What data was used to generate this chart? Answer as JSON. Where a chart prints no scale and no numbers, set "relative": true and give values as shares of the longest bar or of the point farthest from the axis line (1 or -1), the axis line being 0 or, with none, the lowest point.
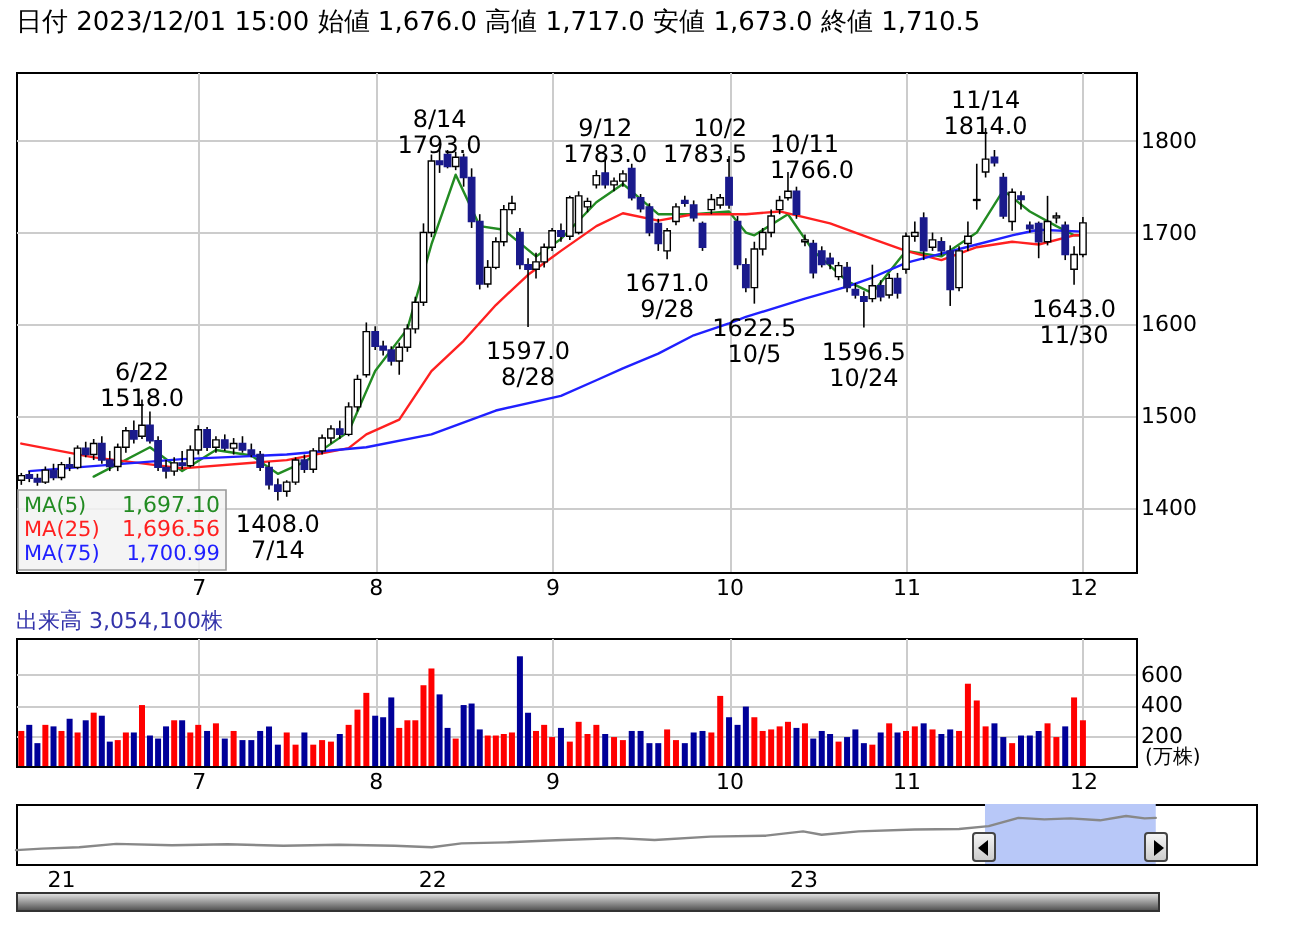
{
  "chart_data": [
    {
      "type": "candlestick",
      "title": "日付 2023/12/01 15:00 始値 1,676.0 高値 1,717.0 安値 1,673.0 終値 1,710.5",
      "x": [
        6,
        6.045,
        6.091,
        6.136,
        6.182,
        6.227,
        6.273,
        6.318,
        6.364,
        6.409,
        6.455,
        6.5,
        6.545,
        6.591,
        6.636,
        6.682,
        6.727,
        6.773,
        6.818,
        6.864,
        6.909,
        6.955,
        7,
        7.05,
        7.1,
        7.15,
        7.2,
        7.25,
        7.3,
        7.35,
        7.4,
        7.45,
        7.5,
        7.55,
        7.6,
        7.65,
        7.7,
        7.75,
        7.8,
        7.85,
        7.9,
        7.95,
        8,
        8.045,
        8.091,
        8.136,
        8.182,
        8.227,
        8.273,
        8.318,
        8.364,
        8.409,
        8.455,
        8.5,
        8.545,
        8.591,
        8.636,
        8.682,
        8.727,
        8.773,
        8.818,
        8.864,
        8.909,
        8.955,
        9,
        9.05,
        9.1,
        9.15,
        9.2,
        9.25,
        9.3,
        9.35,
        9.4,
        9.45,
        9.5,
        9.55,
        9.6,
        9.65,
        9.7,
        9.75,
        9.8,
        9.85,
        9.9,
        9.95,
        10,
        10.048,
        10.095,
        10.143,
        10.19,
        10.238,
        10.286,
        10.333,
        10.381,
        10.429,
        10.476,
        10.524,
        10.571,
        10.619,
        10.667,
        10.714,
        10.762,
        10.81,
        10.857,
        10.905,
        10.952,
        11,
        11.05,
        11.1,
        11.15,
        11.2,
        11.25,
        11.3,
        11.35,
        11.4,
        11.45,
        11.5,
        11.55,
        11.6,
        11.65,
        11.7,
        11.75,
        11.8,
        11.85,
        11.9,
        11.95,
        12
      ],
      "ohlc": [
        [
          1430,
          1438,
          1425,
          1435
        ],
        [
          1436,
          1440,
          1428,
          1432
        ],
        [
          1432,
          1437,
          1424,
          1428
        ],
        [
          1428,
          1445,
          1426,
          1441
        ],
        [
          1441,
          1448,
          1430,
          1433
        ],
        [
          1433,
          1450,
          1430,
          1447
        ],
        [
          1447,
          1455,
          1440,
          1444
        ],
        [
          1444,
          1468,
          1442,
          1465
        ],
        [
          1465,
          1472,
          1455,
          1458
        ],
        [
          1458,
          1475,
          1452,
          1470
        ],
        [
          1470,
          1478,
          1448,
          1452
        ],
        [
          1452,
          1462,
          1440,
          1445
        ],
        [
          1445,
          1470,
          1440,
          1466
        ],
        [
          1466,
          1488,
          1460,
          1484
        ],
        [
          1484,
          1495,
          1470,
          1475
        ],
        [
          1478,
          1518,
          1475,
          1490
        ],
        [
          1490,
          1505,
          1470,
          1473
        ],
        [
          1473,
          1478,
          1440,
          1444
        ],
        [
          1444,
          1452,
          1432,
          1440
        ],
        [
          1440,
          1455,
          1435,
          1449
        ],
        [
          1449,
          1462,
          1442,
          1446
        ],
        [
          1446,
          1468,
          1444,
          1463
        ],
        [
          1463,
          1490,
          1458,
          1485
        ],
        [
          1485,
          1488,
          1462,
          1466
        ],
        [
          1466,
          1478,
          1460,
          1474
        ],
        [
          1474,
          1480,
          1462,
          1465
        ],
        [
          1465,
          1476,
          1458,
          1470
        ],
        [
          1470,
          1478,
          1460,
          1463
        ],
        [
          1463,
          1470,
          1455,
          1458
        ],
        [
          1458,
          1462,
          1440,
          1444
        ],
        [
          1444,
          1450,
          1420,
          1425
        ],
        [
          1425,
          1432,
          1408,
          1418
        ],
        [
          1418,
          1430,
          1412,
          1428
        ],
        [
          1428,
          1455,
          1425,
          1452
        ],
        [
          1452,
          1458,
          1438,
          1442
        ],
        [
          1442,
          1465,
          1438,
          1462
        ],
        [
          1462,
          1480,
          1458,
          1476
        ],
        [
          1476,
          1490,
          1470,
          1486
        ],
        [
          1486,
          1495,
          1475,
          1480
        ],
        [
          1480,
          1515,
          1478,
          1510
        ],
        [
          1510,
          1545,
          1505,
          1540
        ],
        [
          1545,
          1602,
          1542,
          1592
        ],
        [
          1592,
          1598,
          1572,
          1576
        ],
        [
          1576,
          1582,
          1566,
          1572
        ],
        [
          1572,
          1576,
          1555,
          1560
        ],
        [
          1560,
          1580,
          1545,
          1575
        ],
        [
          1575,
          1600,
          1570,
          1595
        ],
        [
          1595,
          1630,
          1590,
          1624
        ],
        [
          1624,
          1710,
          1620,
          1700
        ],
        [
          1700,
          1785,
          1695,
          1778
        ],
        [
          1778,
          1793,
          1765,
          1774
        ],
        [
          1785,
          1790,
          1770,
          1772
        ],
        [
          1772,
          1788,
          1768,
          1782
        ],
        [
          1782,
          1786,
          1750,
          1760
        ],
        [
          1760,
          1770,
          1705,
          1712
        ],
        [
          1712,
          1720,
          1638,
          1644
        ],
        [
          1644,
          1670,
          1640,
          1662
        ],
        [
          1662,
          1695,
          1660,
          1690
        ],
        [
          1690,
          1730,
          1685,
          1725
        ],
        [
          1725,
          1740,
          1720,
          1732
        ],
        [
          1700,
          1705,
          1660,
          1665
        ],
        [
          1665,
          1672,
          1597,
          1660
        ],
        [
          1660,
          1678,
          1650,
          1668
        ],
        [
          1668,
          1688,
          1662,
          1684
        ],
        [
          1684,
          1705,
          1680,
          1702
        ],
        [
          1702,
          1710,
          1690,
          1696
        ],
        [
          1696,
          1740,
          1692,
          1738
        ],
        [
          1700,
          1745,
          1698,
          1740
        ],
        [
          1728,
          1738,
          1722,
          1734
        ],
        [
          1752,
          1768,
          1748,
          1762
        ],
        [
          1765,
          1783,
          1748,
          1752
        ],
        [
          1752,
          1760,
          1745,
          1756
        ],
        [
          1756,
          1768,
          1750,
          1764
        ],
        [
          1770,
          1775,
          1735,
          1738
        ],
        [
          1738,
          1742,
          1722,
          1726
        ],
        [
          1728,
          1732,
          1696,
          1700
        ],
        [
          1710,
          1715,
          1680,
          1688
        ],
        [
          1680,
          1705,
          1671,
          1702
        ],
        [
          1712,
          1732,
          1708,
          1728
        ],
        [
          1735,
          1740,
          1728,
          1732
        ],
        [
          1730,
          1735,
          1712,
          1716
        ],
        [
          1710,
          1712,
          1680,
          1684
        ],
        [
          1725,
          1742,
          1720,
          1736
        ],
        [
          1730,
          1742,
          1726,
          1738
        ],
        [
          1760,
          1783.5,
          1726,
          1730
        ],
        [
          1712,
          1718,
          1660,
          1665
        ],
        [
          1665,
          1672,
          1635,
          1640
        ],
        [
          1640,
          1690,
          1622.5,
          1682
        ],
        [
          1682,
          1705,
          1675,
          1700
        ],
        [
          1700,
          1725,
          1695,
          1718
        ],
        [
          1725,
          1740,
          1720,
          1735
        ],
        [
          1738,
          1766,
          1735,
          1745
        ],
        [
          1745,
          1750,
          1715,
          1720
        ],
        [
          1690,
          1698,
          1685,
          1692
        ],
        [
          1688,
          1692,
          1650,
          1656
        ],
        [
          1680,
          1685,
          1662,
          1665
        ],
        [
          1672,
          1678,
          1660,
          1666
        ],
        [
          1652,
          1668,
          1648,
          1664
        ],
        [
          1662,
          1668,
          1635,
          1640
        ],
        [
          1638,
          1645,
          1628,
          1632
        ],
        [
          1630,
          1636,
          1596.5,
          1625
        ],
        [
          1628,
          1665,
          1624,
          1642
        ],
        [
          1642,
          1648,
          1625,
          1630
        ],
        [
          1632,
          1655,
          1628,
          1650
        ],
        [
          1650,
          1656,
          1628,
          1634
        ],
        [
          1660,
          1700,
          1655,
          1696
        ],
        [
          1696,
          1712,
          1690,
          1700
        ],
        [
          1716,
          1722,
          1670,
          1680
        ],
        [
          1684,
          1700,
          1680,
          1692
        ],
        [
          1690,
          1695,
          1675,
          1680
        ],
        [
          1680,
          1686,
          1620,
          1638
        ],
        [
          1640,
          1685,
          1636,
          1680
        ],
        [
          1688,
          1712,
          1680,
          1696
        ],
        [
          1735,
          1775,
          1725,
          1736
        ],
        [
          1766,
          1814,
          1760,
          1780
        ],
        [
          1782,
          1790,
          1772,
          1776
        ],
        [
          1760,
          1765,
          1715,
          1718
        ],
        [
          1712,
          1748,
          1702,
          1744
        ],
        [
          1740,
          1745,
          1725,
          1736
        ],
        [
          1708,
          1712,
          1700,
          1704
        ],
        [
          1710,
          1712,
          1672,
          1690
        ],
        [
          1690,
          1740,
          1686,
          1712
        ],
        [
          1716,
          1722,
          1710,
          1718
        ],
        [
          1708,
          1712,
          1670,
          1676
        ],
        [
          1660,
          1685,
          1643,
          1676
        ],
        [
          1676,
          1717,
          1673,
          1710.5
        ]
      ],
      "series": [
        {
          "name": "MA(5)",
          "type": "line",
          "color": "#228b22",
          "x": [
            6.409,
            6.727,
            6.909,
            7.1,
            7.3,
            7.45,
            7.6,
            7.85,
            8,
            8.182,
            8.318,
            8.455,
            8.591,
            8.727,
            8.909,
            9.05,
            9.25,
            9.4,
            9.6,
            9.8,
            10,
            10.095,
            10.143,
            10.333,
            10.476,
            10.667,
            10.81,
            11,
            11.2,
            11.4,
            11.55,
            11.7,
            11.85,
            11.95,
            12
          ],
          "values": [
            1434,
            1466,
            1440,
            1463,
            1457,
            1437,
            1450,
            1483,
            1549,
            1595,
            1687,
            1763,
            1707,
            1703,
            1674,
            1693,
            1733,
            1753,
            1720,
            1720,
            1723,
            1700,
            1697,
            1720,
            1680,
            1647,
            1634,
            1680,
            1674,
            1700,
            1746,
            1723,
            1707,
            1697,
            1697
          ]
        },
        {
          "name": "MA(25)",
          "type": "line",
          "color": "#ff2020",
          "x": [
            6,
            6.409,
            6.909,
            7.5,
            7.85,
            7.95,
            8.136,
            8.318,
            8.5,
            8.682,
            8.864,
            9.05,
            9.25,
            9.4,
            9.6,
            9.8,
            10.095,
            10.286,
            10.571,
            10.81,
            11,
            11.2,
            11.4,
            11.6,
            11.75,
            11.95,
            12
          ],
          "values": [
            1470,
            1455,
            1443,
            1452,
            1465,
            1480,
            1496,
            1549,
            1582,
            1621,
            1654,
            1680,
            1707,
            1721,
            1713,
            1720,
            1720,
            1723,
            1710,
            1693,
            1680,
            1670,
            1684,
            1690,
            1687,
            1697,
            1697
          ]
        },
        {
          "name": "MA(75)",
          "type": "line",
          "color": "#2020ff",
          "x": [
            6.045,
            6.909,
            7.5,
            7.95,
            8.318,
            8.682,
            9.05,
            9.25,
            9.4,
            9.6,
            9.8,
            10,
            10.095,
            10.429,
            10.667,
            10.81,
            11,
            11.2,
            11.4,
            11.6,
            11.75,
            12
          ],
          "values": [
            1440,
            1453,
            1458,
            1466,
            1480,
            1506,
            1522,
            1539,
            1552,
            1568,
            1588,
            1601,
            1608,
            1628,
            1641,
            1651,
            1667,
            1677,
            1687,
            1697,
            1703,
            1701
          ]
        }
      ],
      "xlim": [
        5.97,
        12.3
      ],
      "xticks": [
        7,
        8,
        9,
        10,
        11,
        12
      ],
      "ylim": [
        1330,
        1875
      ],
      "yticks": [
        1400,
        1500,
        1600,
        1700,
        1800
      ],
      "grid": true,
      "legend": "bottom left",
      "annotations": [
        {
          "text": "6/22\n1518.0",
          "x": 6.682,
          "y": 1518
        },
        {
          "text": "1408.0\n7/14",
          "x": 7.45,
          "y": 1408
        },
        {
          "text": "8/14\n1793.0",
          "x": 8.364,
          "y": 1793
        },
        {
          "text": "1597.0\n8/28",
          "x": 8.864,
          "y": 1597
        },
        {
          "text": "9/12\n1783.0",
          "x": 9.3,
          "y": 1783
        },
        {
          "text": "1671.0\n9/28",
          "x": 9.65,
          "y": 1671
        },
        {
          "text": "10/2\n1783.5",
          "x": 10,
          "y": 1783.5
        },
        {
          "text": "1622.5\n10/5",
          "x": 10.143,
          "y": 1622.5
        },
        {
          "text": "10/11\n1766.0",
          "x": 10.333,
          "y": 1766
        },
        {
          "text": "1596.5\n10/24",
          "x": 10.762,
          "y": 1596.5
        },
        {
          "text": "11/14\n1814.0",
          "x": 11.45,
          "y": 1814
        },
        {
          "text": "1643.0\n11/30",
          "x": 11.95,
          "y": 1643
        },
        "1,697.10",
        "1,696.56",
        "1,700.99"
      ]
    },
    {
      "type": "bar",
      "title": "出来高 3,054,100株",
      "ylabel": "(万株)",
      "x": [
        6,
        6.045,
        6.091,
        6.136,
        6.182,
        6.227,
        6.273,
        6.318,
        6.364,
        6.409,
        6.455,
        6.5,
        6.545,
        6.591,
        6.636,
        6.682,
        6.727,
        6.773,
        6.818,
        6.864,
        6.909,
        6.955,
        7,
        7.05,
        7.1,
        7.15,
        7.2,
        7.25,
        7.3,
        7.35,
        7.4,
        7.45,
        7.5,
        7.55,
        7.6,
        7.65,
        7.7,
        7.75,
        7.8,
        7.85,
        7.9,
        7.95,
        8,
        8.045,
        8.091,
        8.136,
        8.182,
        8.227,
        8.273,
        8.318,
        8.364,
        8.409,
        8.455,
        8.5,
        8.545,
        8.591,
        8.636,
        8.682,
        8.727,
        8.773,
        8.818,
        8.864,
        8.909,
        8.955,
        9,
        9.05,
        9.1,
        9.15,
        9.2,
        9.25,
        9.3,
        9.35,
        9.4,
        9.45,
        9.5,
        9.55,
        9.6,
        9.65,
        9.7,
        9.75,
        9.8,
        9.85,
        9.9,
        9.95,
        10,
        10.048,
        10.095,
        10.143,
        10.19,
        10.238,
        10.286,
        10.333,
        10.381,
        10.429,
        10.476,
        10.524,
        10.571,
        10.619,
        10.667,
        10.714,
        10.762,
        10.81,
        10.857,
        10.905,
        10.952,
        11,
        11.05,
        11.1,
        11.15,
        11.2,
        11.25,
        11.3,
        11.35,
        11.4,
        11.45,
        11.5,
        11.55,
        11.6,
        11.65,
        11.7,
        11.75,
        11.8,
        11.85,
        11.9,
        11.95,
        12
      ],
      "values": [
        230,
        270,
        150,
        270,
        260,
        230,
        310,
        220,
        300,
        350,
        330,
        160,
        170,
        220,
        220,
        400,
        200,
        180,
        260,
        300,
        300,
        220,
        270,
        230,
        280,
        180,
        230,
        170,
        170,
        230,
        260,
        140,
        220,
        140,
        220,
        140,
        170,
        160,
        210,
        270,
        370,
        480,
        330,
        320,
        450,
        250,
        300,
        300,
        530,
        640,
        470,
        250,
        180,
        400,
        410,
        240,
        200,
        200,
        210,
        220,
        720,
        350,
        230,
        270,
        190,
        250,
        160,
        290,
        210,
        270,
        210,
        190,
        170,
        230,
        230,
        150,
        150,
        240,
        170,
        150,
        220,
        230,
        220,
        460,
        320,
        270,
        390,
        320,
        230,
        240,
        260,
        290,
        250,
        280,
        180,
        230,
        210,
        160,
        190,
        240,
        150,
        140,
        220,
        280,
        220,
        230,
        260,
        280,
        240,
        210,
        240,
        230,
        540,
        430,
        260,
        280,
        190,
        150,
        200,
        200,
        230,
        280,
        190,
        260,
        450,
        300
      ],
      "colors": [
        "#ff0000",
        "#000099",
        "#000099",
        "#ff0000",
        "#000099",
        "#ff0000",
        "#000099",
        "#ff0000",
        "#000099",
        "#ff0000",
        "#000099",
        "#000099",
        "#ff0000",
        "#ff0000",
        "#000099",
        "#ff0000",
        "#000099",
        "#000099",
        "#000099",
        "#ff0000",
        "#000099",
        "#ff0000",
        "#ff0000",
        "#000099",
        "#ff0000",
        "#000099",
        "#ff0000",
        "#000099",
        "#000099",
        "#000099",
        "#000099",
        "#000099",
        "#ff0000",
        "#ff0000",
        "#000099",
        "#ff0000",
        "#ff0000",
        "#ff0000",
        "#000099",
        "#ff0000",
        "#ff0000",
        "#ff0000",
        "#000099",
        "#000099",
        "#000099",
        "#ff0000",
        "#ff0000",
        "#ff0000",
        "#ff0000",
        "#ff0000",
        "#000099",
        "#000099",
        "#ff0000",
        "#000099",
        "#000099",
        "#000099",
        "#ff0000",
        "#ff0000",
        "#ff0000",
        "#ff0000",
        "#000099",
        "#000099",
        "#ff0000",
        "#ff0000",
        "#ff0000",
        "#000099",
        "#ff0000",
        "#ff0000",
        "#ff0000",
        "#ff0000",
        "#000099",
        "#ff0000",
        "#ff0000",
        "#000099",
        "#000099",
        "#000099",
        "#000099",
        "#ff0000",
        "#ff0000",
        "#000099",
        "#000099",
        "#000099",
        "#ff0000",
        "#ff0000",
        "#000099",
        "#000099",
        "#000099",
        "#ff0000",
        "#ff0000",
        "#ff0000",
        "#ff0000",
        "#ff0000",
        "#000099",
        "#ff0000",
        "#000099",
        "#000099",
        "#000099",
        "#ff0000",
        "#000099",
        "#000099",
        "#000099",
        "#ff0000",
        "#000099",
        "#ff0000",
        "#000099",
        "#ff0000",
        "#ff0000",
        "#000099",
        "#ff0000",
        "#000099",
        "#000099",
        "#ff0000",
        "#ff0000",
        "#ff0000",
        "#ff0000",
        "#000099",
        "#000099",
        "#ff0000",
        "#000099",
        "#000099",
        "#000099",
        "#ff0000",
        "#ff0000",
        "#000099",
        "#ff0000",
        "#ff0000"
      ],
      "xlim": [
        5.97,
        12.3
      ],
      "xticks": [
        7,
        8,
        9,
        10,
        11,
        12
      ],
      "ylim": [
        0,
        840
      ],
      "yticks": [
        200,
        400,
        600
      ],
      "grid": true
    },
    {
      "type": "line",
      "relative": true,
      "color": "#888888",
      "x": [
        2020.88,
        2020.95,
        2021.05,
        2021.15,
        2021.3,
        2021.45,
        2021.6,
        2021.75,
        2021.9,
        2022.0,
        2022.08,
        2022.2,
        2022.35,
        2022.5,
        2022.6,
        2022.75,
        2022.9,
        2023.0,
        2023.05,
        2023.15,
        2023.3,
        2023.42,
        2023.5,
        2023.58,
        2023.65,
        2023.72,
        2023.8,
        2023.87,
        2023.92,
        2023.95
      ],
      "values": [
        0.29,
        0.32,
        0.35,
        0.42,
        0.39,
        0.41,
        0.38,
        0.4,
        0.38,
        0.35,
        0.43,
        0.45,
        0.5,
        0.54,
        0.5,
        0.57,
        0.59,
        0.68,
        0.61,
        0.68,
        0.72,
        0.73,
        0.79,
        0.96,
        0.93,
        0.95,
        0.91,
        1,
        0.95,
        0.96
      ],
      "xlim": [
        2020.88,
        2024.22
      ],
      "xticks": [
        {
          "value": 2021,
          "label": "21"
        },
        {
          "value": 2022,
          "label": "22"
        },
        {
          "value": 2023,
          "label": "23"
        }
      ],
      "bands": [
        {
          "axis": "x",
          "from": 2023.49,
          "to": 2023.95,
          "color": "#b8c8f8"
        }
      ]
    }
  ]
}
